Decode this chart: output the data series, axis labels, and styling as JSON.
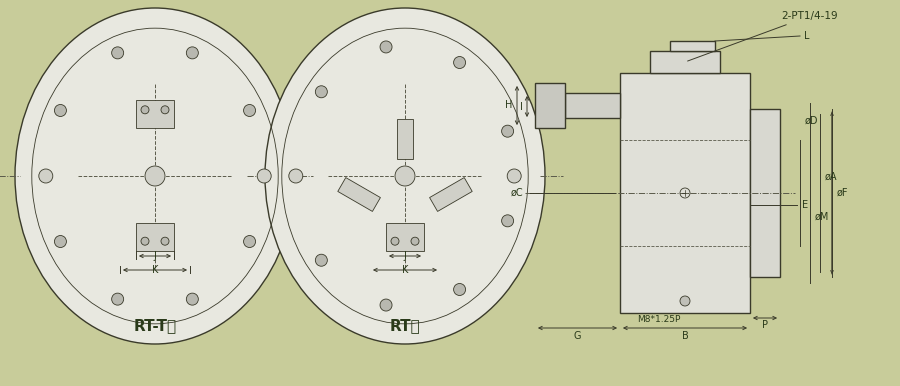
{
  "bg_color": "#c8cc9a",
  "line_color": "#3a3a2a",
  "dim_color": "#3a3a2a",
  "label_color": "#2a3a1a",
  "title_left": "RT-T型",
  "title_right": "RT型",
  "dim_label_2pt": "2-PT1/4-19",
  "dim_labels_right": [
    "L",
    "øC",
    "øD",
    "øM",
    "øA",
    "øF",
    "E",
    "H",
    "I",
    "M8*1.25P",
    "P",
    "G",
    "B"
  ],
  "figsize": [
    9.0,
    3.86
  ],
  "dpi": 100
}
